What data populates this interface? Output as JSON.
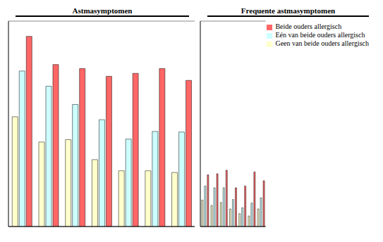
{
  "chart_data": [
    {
      "type": "bar",
      "title": "Astmasymptomen",
      "categories": [
        null,
        null,
        null,
        null,
        null,
        null,
        null
      ],
      "series": [
        {
          "name": "Geen van beide ouders allergisch",
          "color": "#ffffcc",
          "values": [
            18.7,
            14.4,
            14.8,
            11.4,
            9.5,
            9.5,
            9.2
          ]
        },
        {
          "name": "Eén van beide ouders allergisch",
          "color": "#ccffff",
          "values": [
            26.5,
            23.9,
            20.8,
            18.2,
            14.9,
            16.2,
            16.1
          ]
        },
        {
          "name": "Beide ouders allergisch",
          "color": "#ff6666",
          "values": [
            32.4,
            27.6,
            26.9,
            25.6,
            26.1,
            26.9,
            24.9
          ]
        }
      ],
      "ylim": [
        0,
        35
      ],
      "yticks": [
        0,
        5,
        10,
        15,
        20,
        25,
        30,
        35
      ],
      "grid": true,
      "tick_labels": false
    },
    {
      "type": "bar",
      "title": "Frequente astmasymptomen",
      "categories": [
        null,
        null,
        null,
        null,
        null,
        null,
        null
      ],
      "series": [
        {
          "name": "Geen van beide ouders allergisch",
          "color": "#ffffcc",
          "values": [
            4.5,
            3.6,
            4.1,
            3.0,
            2.2,
            1.8,
            3.0
          ]
        },
        {
          "name": "Eén van beide ouders allergisch",
          "color": "#ccffff",
          "values": [
            6.9,
            6.6,
            6.6,
            4.6,
            3.2,
            4.0,
            4.9
          ]
        },
        {
          "name": "Beide ouders allergisch",
          "color": "#ff6666",
          "values": [
            8.8,
            9.0,
            9.6,
            6.6,
            6.9,
            9.3,
            7.8
          ]
        }
      ],
      "ylim": [
        0,
        35
      ],
      "yticks": [
        0,
        5,
        10,
        15,
        20,
        25,
        30,
        35
      ],
      "grid": true,
      "tick_labels": false,
      "legend": "top-right"
    }
  ]
}
